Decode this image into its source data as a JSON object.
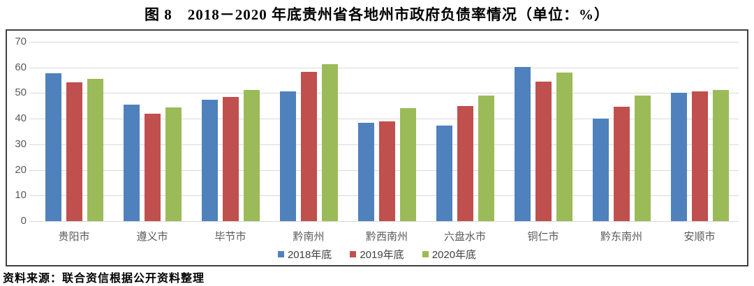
{
  "title": "图 8　2018－2020 年底贵州省各地州市政府负债率情况（单位：%）",
  "source_note": "资料来源：联合资信根据公开资料整理",
  "colors": {
    "series_2018": "#4F81BD",
    "series_2019": "#C0504D",
    "series_2020": "#9BBB59",
    "gridline": "#D9D9D9",
    "axis_text": "#595959",
    "chart_border": "#3F3F3F"
  },
  "chart_data": {
    "type": "bar",
    "title": "图 8　2018－2020 年底贵州省各地州市政府负债率情况（单位：%）",
    "categories": [
      "贵阳市",
      "遵义市",
      "毕节市",
      "黔南州",
      "黔西南州",
      "六盘水市",
      "铜仁市",
      "黔东南州",
      "安顺市"
    ],
    "series": [
      {
        "name": "2018年底",
        "color": "#4F81BD",
        "values": [
          57.8,
          45.4,
          47.3,
          50.6,
          38.3,
          37.2,
          60.2,
          40.1,
          50.0
        ]
      },
      {
        "name": "2019年底",
        "color": "#C0504D",
        "values": [
          54.1,
          41.9,
          48.6,
          58.2,
          39.0,
          45.0,
          54.5,
          44.6,
          50.6
        ]
      },
      {
        "name": "2020年底",
        "color": "#9BBB59",
        "values": [
          55.5,
          44.4,
          51.2,
          61.2,
          44.1,
          48.9,
          58.0,
          48.9,
          51.2
        ]
      }
    ],
    "ylim": [
      0,
      70
    ],
    "ytick_step": 10,
    "yticks": [
      "0",
      "10",
      "20",
      "30",
      "40",
      "50",
      "60",
      "70"
    ],
    "grid": true,
    "legend_position": "bottom",
    "xlabel": "",
    "ylabel": ""
  }
}
